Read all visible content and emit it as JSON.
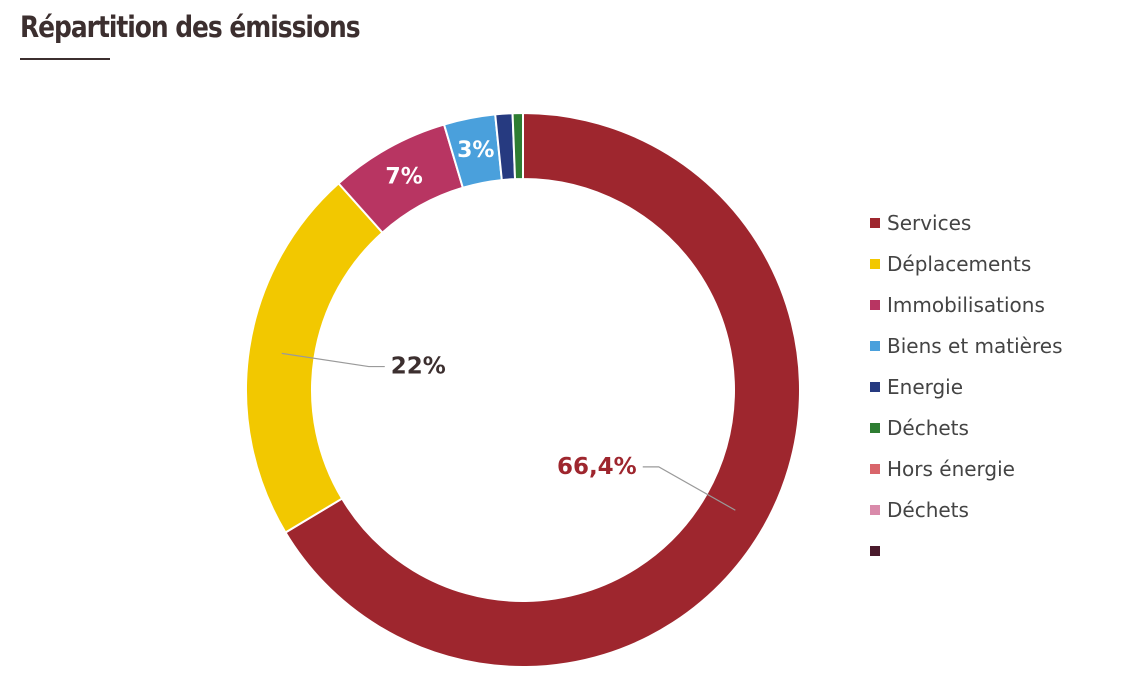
{
  "title": "Répartition des émissions",
  "chart_data": {
    "type": "pie",
    "style": "donut",
    "title": "Répartition des émissions",
    "legend_position": "right",
    "slices": [
      {
        "label": "Services",
        "value": 66.4,
        "color": "#9e262e",
        "data_label": "66,4%",
        "label_color": "#9e262e"
      },
      {
        "label": "Déplacements",
        "value": 22,
        "color": "#f2c800",
        "data_label": "22%",
        "label_color": "#3c2f2f"
      },
      {
        "label": "Immobilisations",
        "value": 7,
        "color": "#b83562",
        "data_label": "7%",
        "label_color": "#ffffff"
      },
      {
        "label": "Biens et matières",
        "value": 3,
        "color": "#4aa0dc",
        "data_label": "3%",
        "label_color": "#ffffff"
      },
      {
        "label": "Energie",
        "value": 1,
        "color": "#263a80",
        "data_label": ""
      },
      {
        "label": "Déchets",
        "value": 0.6,
        "color": "#2e7d32",
        "data_label": ""
      },
      {
        "label": "Hors énergie",
        "value": 0,
        "color": "#d9656b",
        "data_label": ""
      },
      {
        "label": "Déchets",
        "value": 0,
        "color": "#d98aaa",
        "data_label": ""
      },
      {
        "label": "",
        "value": 0,
        "color": "#4a1a2c",
        "data_label": ""
      }
    ]
  }
}
